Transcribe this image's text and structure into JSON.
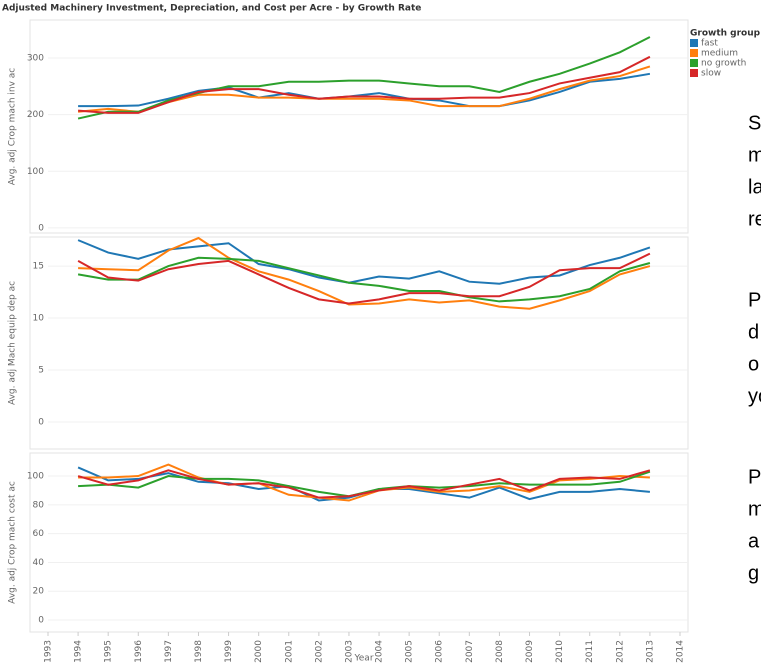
{
  "chart_data": [
    {
      "type": "line",
      "title": "Adjusted Machinery Investment, Depreciation, and Cost per Acre - by Growth Rate",
      "legend_title": "Growth group",
      "legend": "right",
      "grid": true,
      "ylabel": "Avg. adj Crop mach inv ac",
      "ylim": [
        -9,
        367
      ],
      "yticks": [
        0,
        100,
        200,
        300
      ],
      "xlim": [
        1993,
        2014
      ],
      "x": [
        1994,
        1995,
        1996,
        1997,
        1998,
        1999,
        2000,
        2001,
        2002,
        2003,
        2004,
        2005,
        2006,
        2007,
        2008,
        2009,
        2010,
        2011,
        2012,
        2013
      ],
      "series": [
        {
          "name": "fast",
          "color": "#1f77b4",
          "values": [
            215,
            215,
            216,
            228,
            242,
            248,
            230,
            238,
            228,
            232,
            238,
            228,
            225,
            215,
            215,
            225,
            240,
            258,
            263,
            272
          ]
        },
        {
          "name": "medium",
          "color": "#ff7f0e",
          "values": [
            205,
            210,
            205,
            222,
            235,
            235,
            230,
            230,
            228,
            228,
            228,
            225,
            215,
            215,
            215,
            228,
            245,
            260,
            268,
            285
          ]
        },
        {
          "name": "no growth",
          "color": "#2ca02c",
          "values": [
            193,
            205,
            205,
            225,
            238,
            250,
            250,
            258,
            258,
            260,
            260,
            255,
            250,
            250,
            240,
            258,
            272,
            290,
            310,
            337
          ]
        },
        {
          "name": "slow",
          "color": "#d62728",
          "values": [
            207,
            203,
            203,
            222,
            240,
            245,
            245,
            235,
            228,
            232,
            232,
            228,
            228,
            230,
            230,
            238,
            255,
            265,
            275,
            302
          ]
        }
      ]
    },
    {
      "type": "line",
      "grid": true,
      "ylabel": "Avg. adj Mach equip dep ac",
      "ylim": [
        -2.6,
        17.8
      ],
      "yticks": [
        0,
        5,
        10,
        15
      ],
      "xlim": [
        1993,
        2014
      ],
      "x": [
        1994,
        1995,
        1996,
        1997,
        1998,
        1999,
        2000,
        2001,
        2002,
        2003,
        2004,
        2005,
        2006,
        2007,
        2008,
        2009,
        2010,
        2011,
        2012,
        2013
      ],
      "series": [
        {
          "name": "fast",
          "color": "#1f77b4",
          "values": [
            17.5,
            16.3,
            15.7,
            16.6,
            16.9,
            17.2,
            15.2,
            14.7,
            13.9,
            13.4,
            14.0,
            13.8,
            14.5,
            13.5,
            13.3,
            13.9,
            14.1,
            15.1,
            15.8,
            16.8
          ]
        },
        {
          "name": "medium",
          "color": "#ff7f0e",
          "values": [
            14.8,
            14.7,
            14.6,
            16.5,
            17.7,
            15.8,
            14.5,
            13.7,
            12.6,
            11.3,
            11.4,
            11.8,
            11.5,
            11.7,
            11.1,
            10.9,
            11.7,
            12.6,
            14.2,
            15.0
          ]
        },
        {
          "name": "no growth",
          "color": "#2ca02c",
          "values": [
            14.2,
            13.7,
            13.7,
            15.0,
            15.8,
            15.7,
            15.5,
            14.8,
            14.1,
            13.4,
            13.1,
            12.6,
            12.6,
            12.0,
            11.6,
            11.8,
            12.1,
            12.8,
            14.5,
            15.3
          ]
        },
        {
          "name": "slow",
          "color": "#d62728",
          "values": [
            15.5,
            13.9,
            13.6,
            14.7,
            15.2,
            15.5,
            14.2,
            12.9,
            11.8,
            11.4,
            11.8,
            12.4,
            12.4,
            12.1,
            12.1,
            13.0,
            14.6,
            14.8,
            14.8,
            16.2
          ]
        }
      ]
    },
    {
      "type": "line",
      "grid": true,
      "ylabel": "Avg. adj Crop mach cost ac",
      "ylim": [
        -8.3,
        116
      ],
      "yticks": [
        0,
        20,
        40,
        60,
        80,
        100
      ],
      "xlim": [
        1993,
        2014
      ],
      "xlabel": "Year",
      "xticks": [
        1993,
        1994,
        1995,
        1996,
        1997,
        1998,
        1999,
        2000,
        2001,
        2002,
        2003,
        2004,
        2005,
        2006,
        2007,
        2008,
        2009,
        2010,
        2011,
        2012,
        2013,
        2014
      ],
      "x": [
        1994,
        1995,
        1996,
        1997,
        1998,
        1999,
        2000,
        2001,
        2002,
        2003,
        2004,
        2005,
        2006,
        2007,
        2008,
        2009,
        2010,
        2011,
        2012,
        2013
      ],
      "series": [
        {
          "name": "fast",
          "color": "#1f77b4",
          "values": [
            106,
            97,
            98,
            102,
            96,
            95,
            91,
            93,
            83,
            85,
            91,
            91,
            88,
            85,
            92,
            84,
            89,
            89,
            91,
            89
          ]
        },
        {
          "name": "medium",
          "color": "#ff7f0e",
          "values": [
            99,
            99,
            100,
            108,
            99,
            94,
            95,
            87,
            85,
            83,
            90,
            92,
            89,
            90,
            93,
            89,
            97,
            98,
            100,
            99
          ]
        },
        {
          "name": "no growth",
          "color": "#2ca02c",
          "values": [
            93,
            94,
            92,
            100,
            98,
            98,
            97,
            93,
            89,
            86,
            91,
            93,
            92,
            93,
            95,
            94,
            94,
            94,
            96,
            103
          ]
        },
        {
          "name": "slow",
          "color": "#d62728",
          "values": [
            100,
            94,
            97,
            104,
            98,
            94,
            95,
            92,
            85,
            86,
            90,
            93,
            90,
            94,
            98,
            90,
            98,
            99,
            98,
            104
          ]
        }
      ]
    }
  ],
  "side_text": [
    [
      "S",
      "m",
      "la",
      "re"
    ],
    [
      "P",
      "d",
      "o",
      "yo"
    ],
    [
      "P",
      "m",
      "a",
      "g"
    ]
  ]
}
